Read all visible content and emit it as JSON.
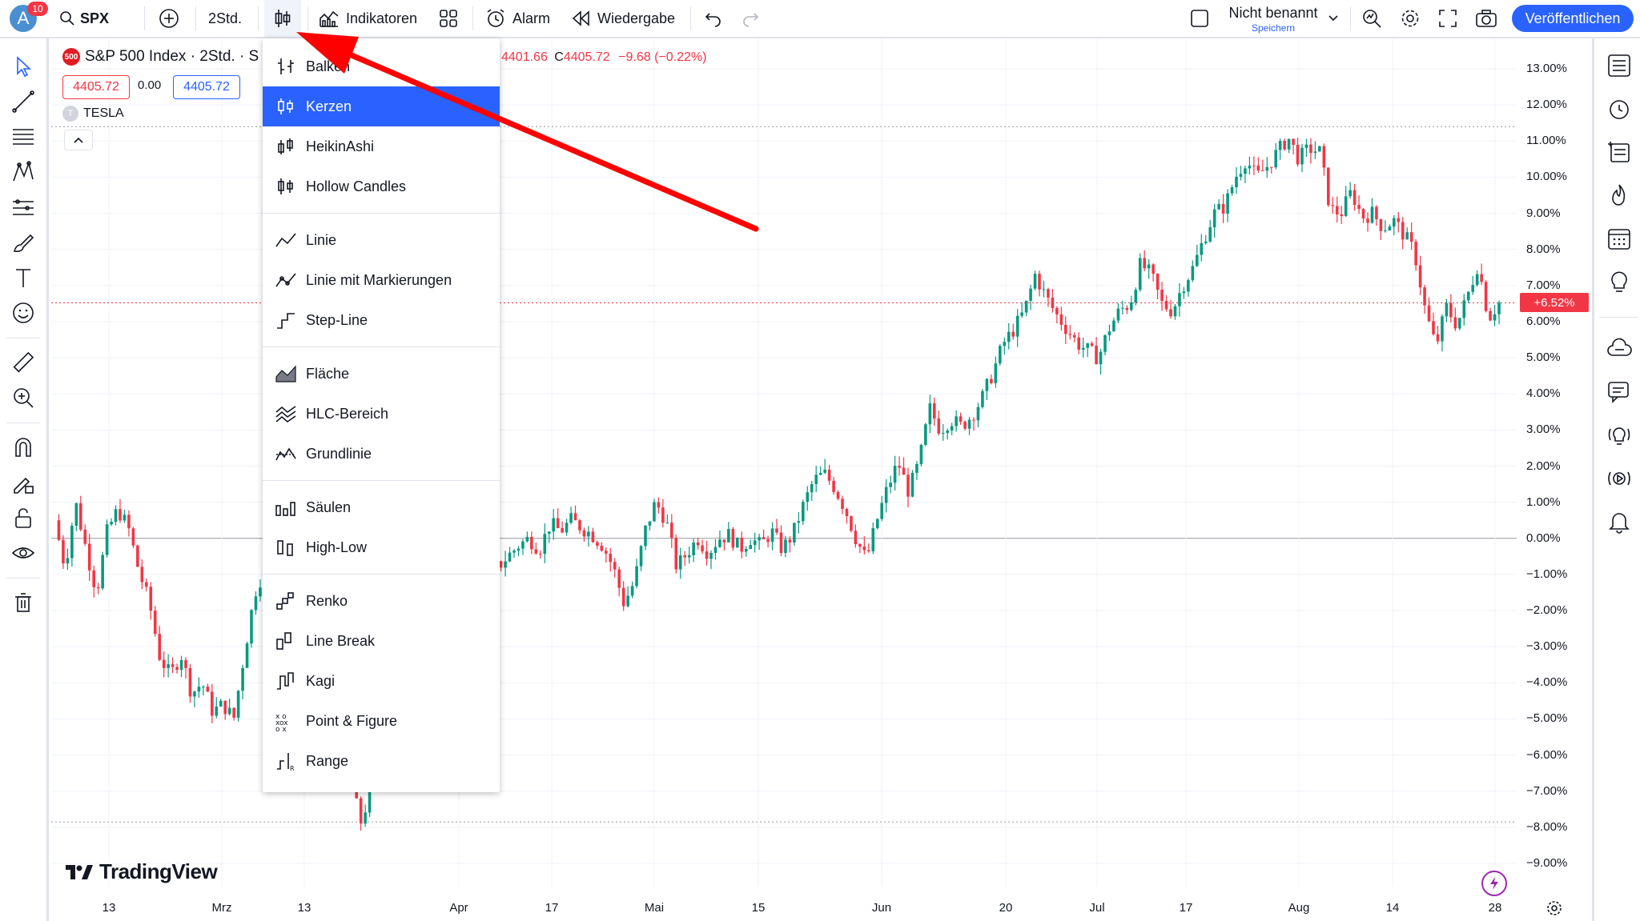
{
  "topbar": {
    "avatar_letter": "A",
    "notification_count": "10",
    "symbol": "SPX",
    "interval": "2Std.",
    "indicators_label": "Indikatoren",
    "alert_label": "Alarm",
    "replay_label": "Wiedergabe",
    "layout_name": "Nicht benannt",
    "save_label": "Speichern",
    "publish_label": "Veröffentlichen"
  },
  "legend": {
    "title": "S&P 500 Index · 2Std. · S",
    "badge": "500",
    "ohlc_tail_prefix": "",
    "ohlc_tail_value": "4401.66",
    "close_prefix": "C",
    "close_value": "4405.72",
    "change": "−9.68 (−0.22%)",
    "bid": "4405.72",
    "spread": "0.00",
    "ask": "4405.72",
    "compare_symbol": "TESLA",
    "compare_badge": "T"
  },
  "chart_type_menu": {
    "items": [
      {
        "label": "Balken",
        "icon": "bars-icon",
        "selected": false
      },
      {
        "label": "Kerzen",
        "icon": "candles-icon",
        "selected": true
      },
      {
        "label": "HeikinAshi",
        "icon": "heikin-ashi-icon",
        "selected": false
      },
      {
        "label": "Hollow Candles",
        "icon": "hollow-candles-icon",
        "selected": false
      },
      {
        "label": "Linie",
        "icon": "line-icon",
        "selected": false
      },
      {
        "label": "Linie mit Markierungen",
        "icon": "line-markers-icon",
        "selected": false
      },
      {
        "label": "Step-Line",
        "icon": "step-line-icon",
        "selected": false
      },
      {
        "label": "Fläche",
        "icon": "area-icon",
        "selected": false
      },
      {
        "label": "HLC-Bereich",
        "icon": "hlc-area-icon",
        "selected": false
      },
      {
        "label": "Grundlinie",
        "icon": "baseline-icon",
        "selected": false
      },
      {
        "label": "Säulen",
        "icon": "columns-icon",
        "selected": false
      },
      {
        "label": "High-Low",
        "icon": "high-low-icon",
        "selected": false
      },
      {
        "label": "Renko",
        "icon": "renko-icon",
        "selected": false
      },
      {
        "label": "Line Break",
        "icon": "line-break-icon",
        "selected": false
      },
      {
        "label": "Kagi",
        "icon": "kagi-icon",
        "selected": false
      },
      {
        "label": "Point & Figure",
        "icon": "point-figure-icon",
        "selected": false
      },
      {
        "label": "Range",
        "icon": "range-icon",
        "selected": false
      }
    ]
  },
  "watermark": "TradingView",
  "price_badge": "+6.52%",
  "colors": {
    "accent": "#2962ff",
    "up": "#089981",
    "down": "#f23645",
    "arrow": "#ff0000"
  },
  "chart_data": {
    "type": "candlestick",
    "ylabel": "",
    "y_ticks": [
      "13.00%",
      "12.00%",
      "11.00%",
      "10.00%",
      "9.00%",
      "8.00%",
      "7.00%",
      "6.00%",
      "5.00%",
      "4.00%",
      "3.00%",
      "2.00%",
      "1.00%",
      "0.00%",
      "−1.00%",
      "−2.00%",
      "−3.00%",
      "−4.00%",
      "−5.00%",
      "−6.00%",
      "−7.00%",
      "−8.00%",
      "−9.00%"
    ],
    "x_ticks": [
      "13",
      "Mrz",
      "13",
      "Apr",
      "17",
      "Mai",
      "15",
      "Jun",
      "20",
      "Jul",
      "17",
      "Aug",
      "14",
      "28"
    ],
    "ylim": [
      -9.5,
      13.5
    ],
    "last_value": 6.52,
    "path": [
      [
        0,
        0.5
      ],
      [
        2,
        -0.8
      ],
      [
        4,
        1.0
      ],
      [
        6,
        -0.3
      ],
      [
        8,
        -1.5
      ],
      [
        10,
        0.2
      ],
      [
        12,
        0.8
      ],
      [
        14,
        0.3
      ],
      [
        16,
        -0.9
      ],
      [
        18,
        -1.8
      ],
      [
        20,
        -3.3
      ],
      [
        22,
        -3.8
      ],
      [
        24,
        -3.2
      ],
      [
        26,
        -4.3
      ],
      [
        28,
        -4.0
      ],
      [
        30,
        -4.8
      ],
      [
        32,
        -4.6
      ],
      [
        34,
        -5.0
      ],
      [
        36,
        -3.2
      ],
      [
        38,
        -1.5
      ],
      [
        40,
        -0.8
      ],
      [
        42,
        -2.0
      ],
      [
        44,
        -1.2
      ],
      [
        46,
        -1.6
      ],
      [
        48,
        -1.0
      ],
      [
        50,
        -2.2
      ],
      [
        52,
        -3.6
      ],
      [
        54,
        -3.0
      ],
      [
        56,
        -6.5
      ],
      [
        58,
        -7.9
      ],
      [
        60,
        -7.0
      ],
      [
        62,
        -6.0
      ],
      [
        64,
        -5.2
      ],
      [
        66,
        -4.4
      ],
      [
        68,
        -3.6
      ],
      [
        70,
        -2.8
      ],
      [
        72,
        -2.1
      ],
      [
        74,
        -1.5
      ],
      [
        76,
        -1.3
      ],
      [
        78,
        -1.0
      ],
      [
        80,
        -1.3
      ],
      [
        82,
        -0.9
      ],
      [
        84,
        -0.8
      ],
      [
        86,
        -0.5
      ],
      [
        88,
        -0.2
      ],
      [
        90,
        0.0
      ],
      [
        92,
        -0.3
      ],
      [
        94,
        0.4
      ],
      [
        96,
        0.2
      ],
      [
        98,
        0.5
      ],
      [
        100,
        0.3
      ],
      [
        102,
        0.1
      ],
      [
        104,
        -0.2
      ],
      [
        106,
        -0.8
      ],
      [
        108,
        -1.8
      ],
      [
        110,
        -1.2
      ],
      [
        112,
        0.2
      ],
      [
        114,
        1.0
      ],
      [
        116,
        0.5
      ],
      [
        118,
        -0.8
      ],
      [
        120,
        -0.4
      ],
      [
        122,
        0.0
      ],
      [
        124,
        -0.4
      ],
      [
        126,
        0.0
      ],
      [
        128,
        0.1
      ],
      [
        130,
        -0.3
      ],
      [
        132,
        0.0
      ],
      [
        134,
        -0.2
      ],
      [
        136,
        0.2
      ],
      [
        138,
        -0.3
      ],
      [
        140,
        0.1
      ],
      [
        142,
        0.9
      ],
      [
        144,
        1.6
      ],
      [
        146,
        1.8
      ],
      [
        148,
        1.4
      ],
      [
        150,
        0.8
      ],
      [
        152,
        0.0
      ],
      [
        154,
        -0.6
      ],
      [
        156,
        0.5
      ],
      [
        158,
        1.4
      ],
      [
        160,
        2.1
      ],
      [
        162,
        1.3
      ],
      [
        164,
        2.1
      ],
      [
        166,
        3.6
      ],
      [
        168,
        3.0
      ],
      [
        170,
        3.3
      ],
      [
        172,
        3.1
      ],
      [
        174,
        3.4
      ],
      [
        176,
        3.9
      ],
      [
        178,
        4.6
      ],
      [
        180,
        5.4
      ],
      [
        182,
        5.8
      ],
      [
        184,
        6.3
      ],
      [
        186,
        7.3
      ],
      [
        188,
        6.7
      ],
      [
        190,
        6.2
      ],
      [
        192,
        5.8
      ],
      [
        194,
        5.4
      ],
      [
        196,
        5.2
      ],
      [
        198,
        5.0
      ],
      [
        200,
        5.8
      ],
      [
        202,
        6.3
      ],
      [
        204,
        6.5
      ],
      [
        206,
        7.6
      ],
      [
        208,
        7.3
      ],
      [
        210,
        6.5
      ],
      [
        212,
        6.3
      ],
      [
        214,
        7.0
      ],
      [
        216,
        7.5
      ],
      [
        218,
        8.3
      ],
      [
        220,
        9.0
      ],
      [
        222,
        9.2
      ],
      [
        224,
        10.0
      ],
      [
        226,
        10.5
      ],
      [
        228,
        10.0
      ],
      [
        230,
        10.3
      ],
      [
        232,
        10.7
      ],
      [
        234,
        11.1
      ],
      [
        236,
        10.5
      ],
      [
        238,
        10.8
      ],
      [
        240,
        10.7
      ],
      [
        242,
        9.1
      ],
      [
        244,
        9.0
      ],
      [
        246,
        9.6
      ],
      [
        248,
        8.9
      ],
      [
        250,
        9.0
      ],
      [
        252,
        8.6
      ],
      [
        254,
        8.8
      ],
      [
        256,
        8.4
      ],
      [
        258,
        7.9
      ],
      [
        260,
        6.3
      ],
      [
        262,
        5.3
      ],
      [
        264,
        6.4
      ],
      [
        266,
        5.9
      ],
      [
        268,
        6.7
      ],
      [
        270,
        7.6
      ],
      [
        272,
        6.1
      ],
      [
        274,
        6.52
      ]
    ]
  }
}
